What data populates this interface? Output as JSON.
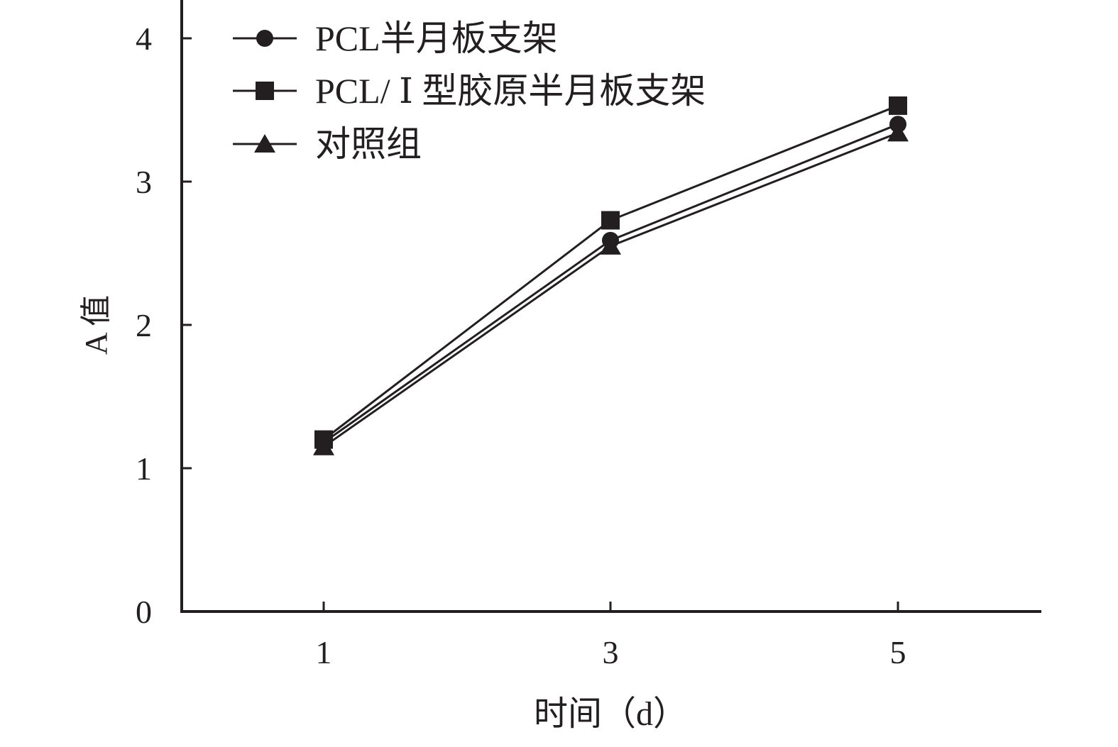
{
  "chart_data": {
    "type": "line",
    "title": "",
    "xlabel": "时间（d）",
    "ylabel": "A 值",
    "x": [
      1,
      3,
      5
    ],
    "xticks": [
      "1",
      "3",
      "5"
    ],
    "yticks": [
      "0",
      "1",
      "2",
      "3",
      "4"
    ],
    "ylim": [
      0,
      4
    ],
    "grid": false,
    "legend_position": "top-left",
    "series": [
      {
        "name": "PCL半月板支架",
        "marker": "circle",
        "values": [
          1.18,
          2.59,
          3.4
        ]
      },
      {
        "name": "PCL/ Ⅰ 型胶原半月板支架",
        "marker": "square",
        "values": [
          1.2,
          2.73,
          3.53
        ]
      },
      {
        "name": "对照组",
        "marker": "triangle",
        "values": [
          1.15,
          2.55,
          3.34
        ]
      }
    ],
    "colors": {
      "line": "#231f20",
      "axis": "#231f20"
    }
  }
}
